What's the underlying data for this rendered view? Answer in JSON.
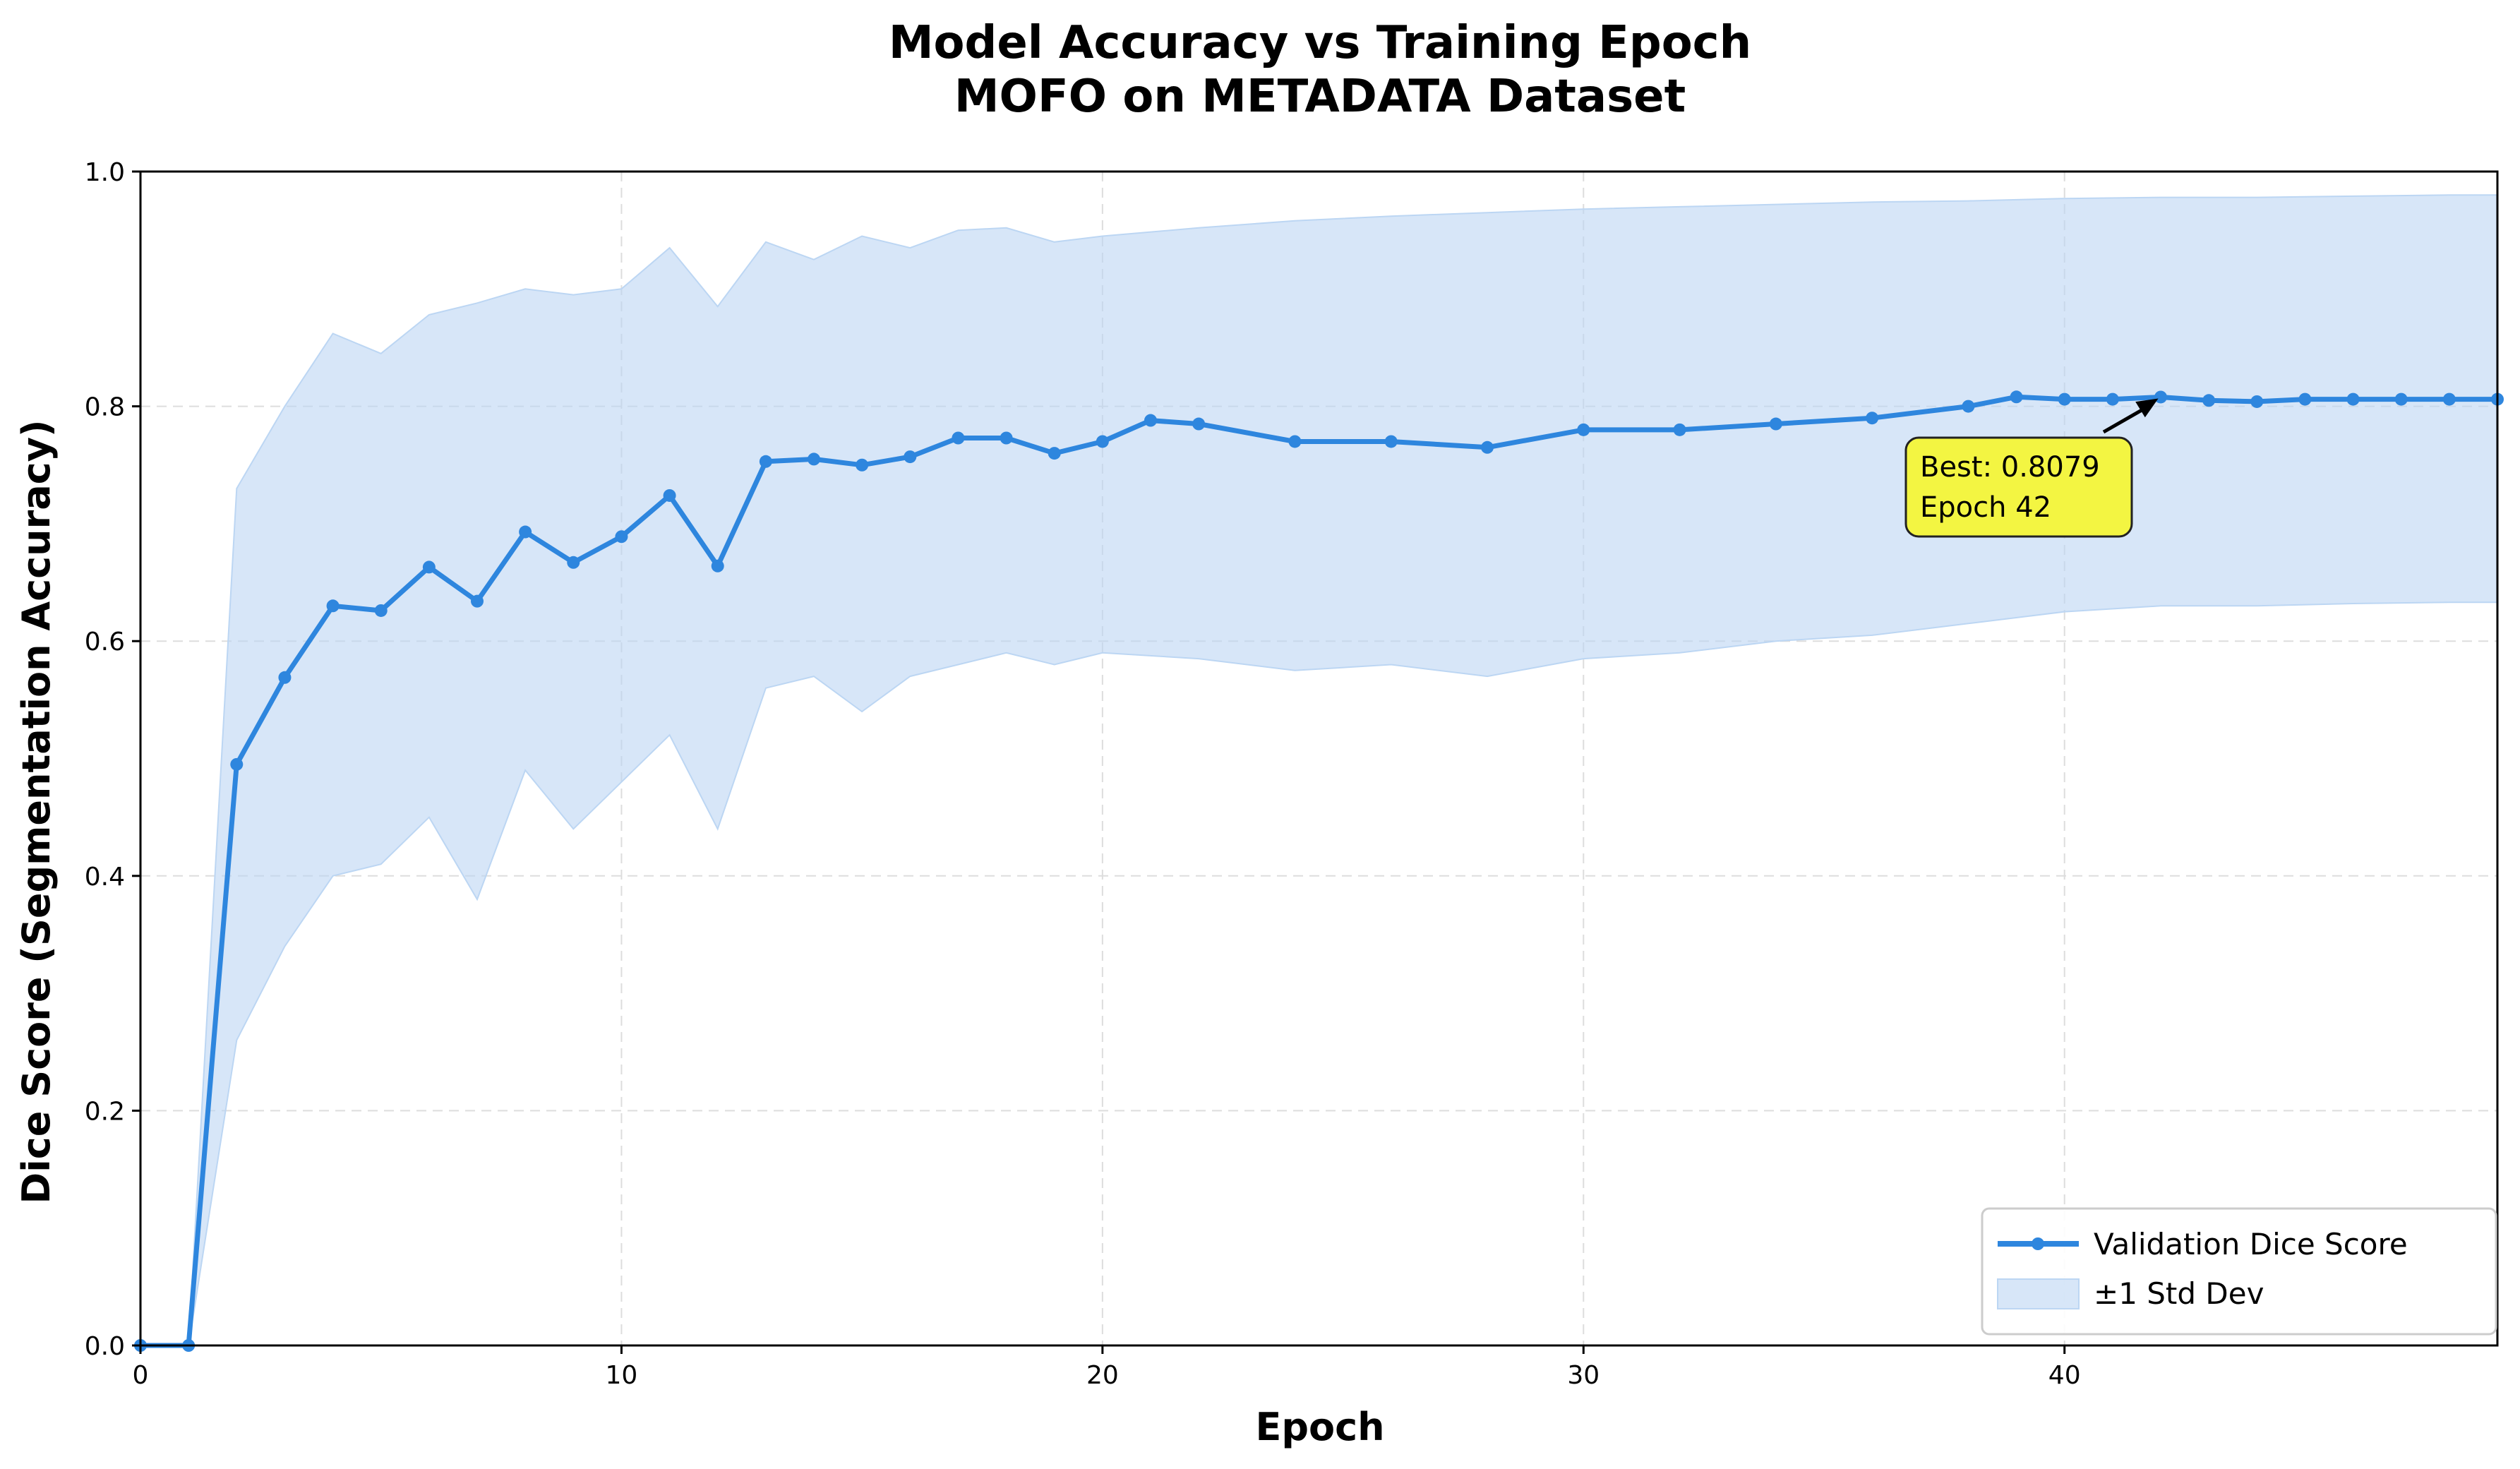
{
  "chart_data": {
    "type": "line",
    "title_line1": "Model Accuracy vs Training Epoch",
    "title_line2": "MOFO on METADATA Dataset",
    "xlabel": "Epoch",
    "ylabel": "Dice Score (Segmentation Accuracy)",
    "xlim": [
      0,
      49
    ],
    "ylim": [
      0.0,
      1.0
    ],
    "xticks": [
      0,
      10,
      20,
      30,
      40
    ],
    "xtick_labels": [
      "0",
      "10",
      "20",
      "30",
      "40"
    ],
    "yticks": [
      0.0,
      0.2,
      0.4,
      0.6,
      0.8,
      1.0
    ],
    "ytick_labels": [
      "0.0",
      "0.2",
      "0.4",
      "0.6",
      "0.8",
      "1.0"
    ],
    "grid": true,
    "legend_position": "lower-right",
    "series": [
      {
        "name": "Validation Dice Score",
        "color": "#2e86de",
        "x": [
          0,
          1,
          2,
          3,
          4,
          5,
          6,
          7,
          8,
          9,
          10,
          11,
          12,
          13,
          14,
          15,
          16,
          17,
          18,
          19,
          20,
          21,
          22,
          24,
          26,
          28,
          30,
          32,
          34,
          36,
          38,
          39,
          40,
          41,
          42,
          43,
          44,
          45,
          46,
          47,
          48,
          49
        ],
        "values": [
          0.0,
          0.0,
          0.495,
          0.569,
          0.63,
          0.626,
          0.663,
          0.634,
          0.693,
          0.667,
          0.689,
          0.724,
          0.664,
          0.753,
          0.755,
          0.75,
          0.757,
          0.773,
          0.773,
          0.76,
          0.77,
          0.788,
          0.785,
          0.77,
          0.77,
          0.765,
          0.78,
          0.78,
          0.785,
          0.79,
          0.8,
          0.808,
          0.806,
          0.806,
          0.8079,
          0.805,
          0.804,
          0.806,
          0.806,
          0.806,
          0.806,
          0.806
        ]
      },
      {
        "name": "±1 Std Dev",
        "color": "#bcd6f3",
        "x": [
          0,
          1,
          2,
          3,
          4,
          5,
          6,
          7,
          8,
          9,
          10,
          11,
          12,
          13,
          14,
          15,
          16,
          17,
          18,
          19,
          20,
          22,
          24,
          26,
          28,
          30,
          32,
          34,
          36,
          38,
          40,
          42,
          44,
          46,
          48,
          49
        ],
        "upper": [
          0.0,
          0.0,
          0.73,
          0.8,
          0.862,
          0.845,
          0.878,
          0.888,
          0.9,
          0.895,
          0.9,
          0.935,
          0.885,
          0.94,
          0.925,
          0.945,
          0.935,
          0.95,
          0.952,
          0.94,
          0.945,
          0.952,
          0.958,
          0.962,
          0.965,
          0.968,
          0.97,
          0.972,
          0.974,
          0.975,
          0.977,
          0.978,
          0.978,
          0.979,
          0.98,
          0.98
        ],
        "lower": [
          0.0,
          0.0,
          0.26,
          0.34,
          0.4,
          0.41,
          0.45,
          0.38,
          0.49,
          0.44,
          0.48,
          0.52,
          0.44,
          0.56,
          0.57,
          0.54,
          0.57,
          0.58,
          0.59,
          0.58,
          0.59,
          0.585,
          0.575,
          0.58,
          0.57,
          0.585,
          0.59,
          0.6,
          0.605,
          0.615,
          0.625,
          0.63,
          0.63,
          0.632,
          0.633,
          0.633
        ]
      }
    ],
    "best_annotation": {
      "text_line1": "Best: 0.8079",
      "text_line2": "Epoch 42",
      "epoch": 42,
      "value": 0.8079,
      "box_color": "#f3f542"
    }
  }
}
